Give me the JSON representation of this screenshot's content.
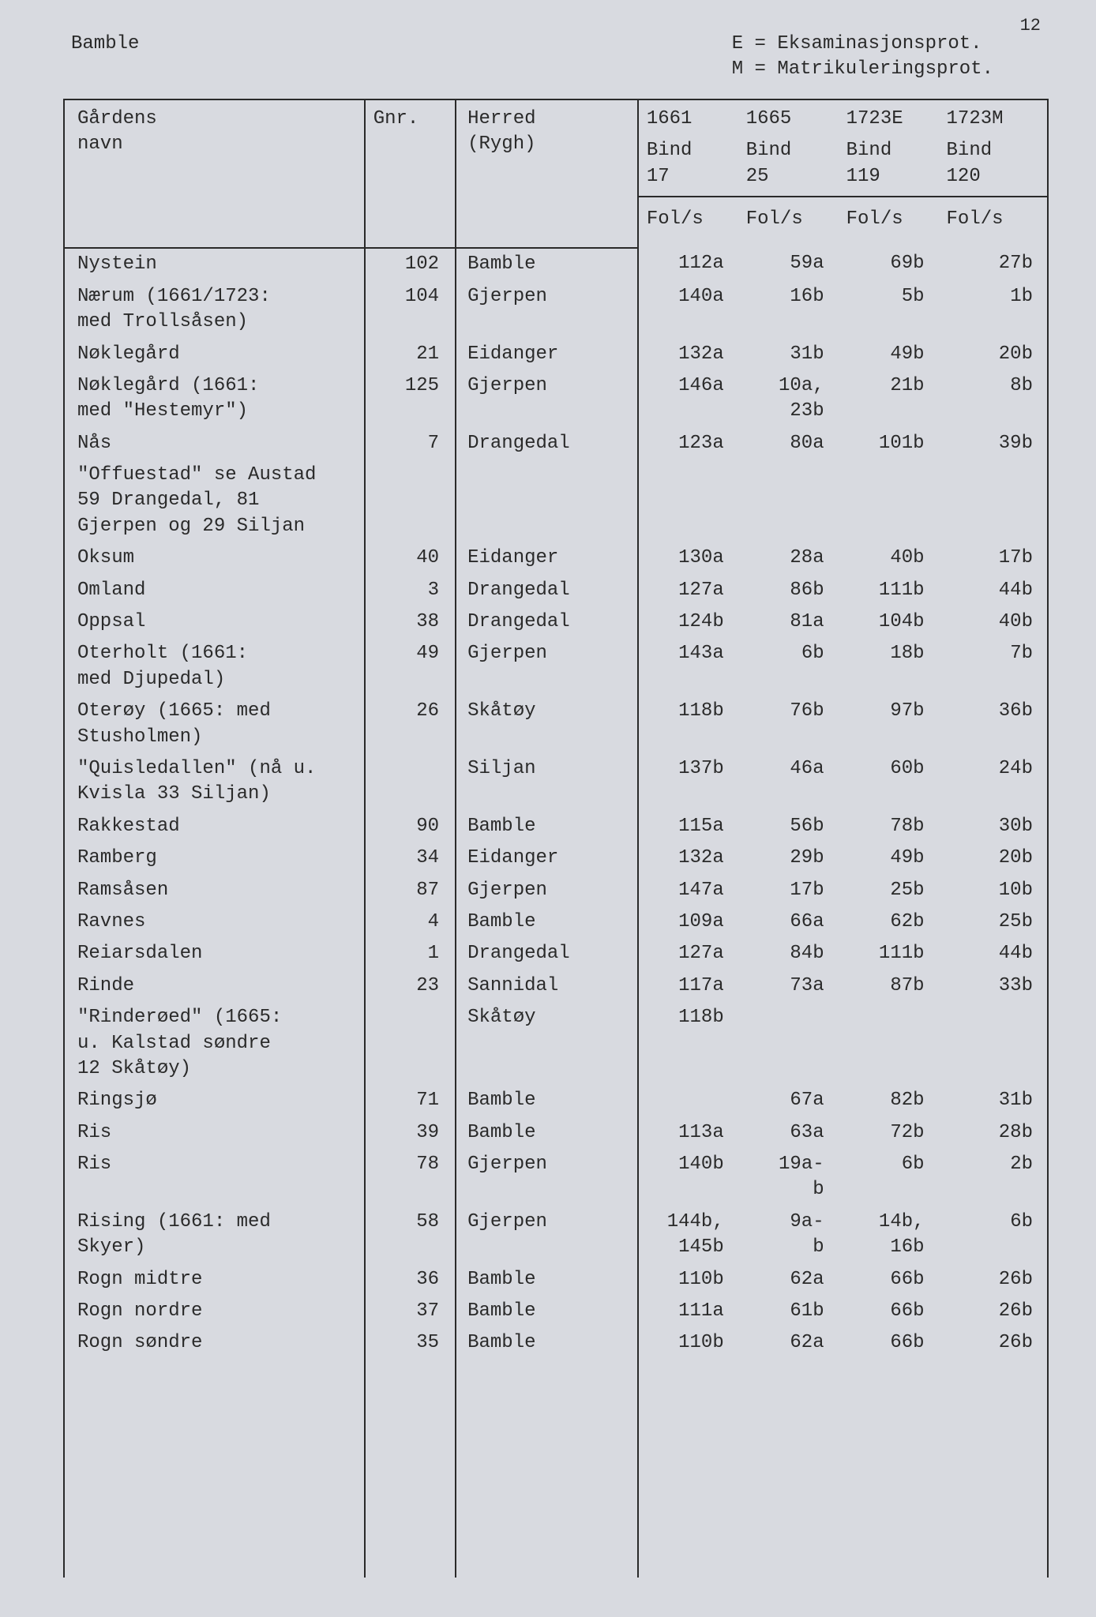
{
  "page_number": "12",
  "region": "Bamble",
  "legend": {
    "line1": "E = Eksaminasjonsprot.",
    "line2": "M = Matrikuleringsprot."
  },
  "columns": {
    "name": "Gårdens\nnavn",
    "gnr": "Gnr.",
    "herred": "Herred\n(Rygh)",
    "y1_label": "1661",
    "y2_label": "1665",
    "y3_label": "1723E",
    "y4_label": "1723M",
    "bind": "Bind",
    "y1_num": "17",
    "y2_num": "25",
    "y3_num": "119",
    "y4_num": "120",
    "fols": "Fol/s"
  },
  "rows": [
    {
      "name": "Nystein",
      "gnr": "102",
      "herred": "Bamble",
      "y1": "112a",
      "y2": "59a",
      "y3": "69b",
      "y4": "27b"
    },
    {
      "name": "Nærum (1661/1723:\nmed Trollsåsen)",
      "gnr": "104",
      "herred": "Gjerpen",
      "y1": "140a",
      "y2": "16b",
      "y3": "5b",
      "y4": "1b"
    },
    {
      "name": "Nøklegård",
      "gnr": "21",
      "herred": "Eidanger",
      "y1": "132a",
      "y2": "31b",
      "y3": "49b",
      "y4": "20b"
    },
    {
      "name": "Nøklegård (1661:\nmed \"Hestemyr\")",
      "gnr": "125",
      "herred": "Gjerpen",
      "y1": "146a",
      "y2": "10a,\n23b",
      "y3": "21b",
      "y4": "8b"
    },
    {
      "name": "Nås",
      "gnr": "7",
      "herred": "Drangedal",
      "y1": "123a",
      "y2": "80a",
      "y3": "101b",
      "y4": "39b"
    },
    {
      "name": "\"Offuestad\" se Austad\n59 Drangedal, 81\nGjerpen og 29 Siljan",
      "gnr": "",
      "herred": "",
      "y1": "",
      "y2": "",
      "y3": "",
      "y4": ""
    },
    {
      "name": "Oksum",
      "gnr": "40",
      "herred": "Eidanger",
      "y1": "130a",
      "y2": "28a",
      "y3": "40b",
      "y4": "17b"
    },
    {
      "name": "Omland",
      "gnr": "3",
      "herred": "Drangedal",
      "y1": "127a",
      "y2": "86b",
      "y3": "111b",
      "y4": "44b"
    },
    {
      "name": "Oppsal",
      "gnr": "38",
      "herred": "Drangedal",
      "y1": "124b",
      "y2": "81a",
      "y3": "104b",
      "y4": "40b"
    },
    {
      "name": "Oterholt (1661:\nmed Djupedal)",
      "gnr": "49",
      "herred": "Gjerpen",
      "y1": "143a",
      "y2": "6b",
      "y3": "18b",
      "y4": "7b"
    },
    {
      "name": "Oterøy (1665: med\nStusholmen)",
      "gnr": "26",
      "herred": "Skåtøy",
      "y1": "118b",
      "y2": "76b",
      "y3": "97b",
      "y4": "36b"
    },
    {
      "name": "\"Quisledallen\" (nå u.\nKvisla 33 Siljan)",
      "gnr": "",
      "herred": "Siljan",
      "y1": "137b",
      "y2": "46a",
      "y3": "60b",
      "y4": "24b"
    },
    {
      "name": "Rakkestad",
      "gnr": "90",
      "herred": "Bamble",
      "y1": "115a",
      "y2": "56b",
      "y3": "78b",
      "y4": "30b"
    },
    {
      "name": "Ramberg",
      "gnr": "34",
      "herred": "Eidanger",
      "y1": "132a",
      "y2": "29b",
      "y3": "49b",
      "y4": "20b"
    },
    {
      "name": "Ramsåsen",
      "gnr": "87",
      "herred": "Gjerpen",
      "y1": "147a",
      "y2": "17b",
      "y3": "25b",
      "y4": "10b"
    },
    {
      "name": "Ravnes",
      "gnr": "4",
      "herred": "Bamble",
      "y1": "109a",
      "y2": "66a",
      "y3": "62b",
      "y4": "25b"
    },
    {
      "name": "Reiarsdalen",
      "gnr": "1",
      "herred": "Drangedal",
      "y1": "127a",
      "y2": "84b",
      "y3": "111b",
      "y4": "44b"
    },
    {
      "name": "Rinde",
      "gnr": "23",
      "herred": "Sannidal",
      "y1": "117a",
      "y2": "73a",
      "y3": "87b",
      "y4": "33b"
    },
    {
      "name": "\"Rinderøed\" (1665:\nu. Kalstad søndre\n12 Skåtøy)",
      "gnr": "",
      "herred": "Skåtøy",
      "y1": "118b",
      "y2": "",
      "y3": "",
      "y4": ""
    },
    {
      "name": "Ringsjø",
      "gnr": "71",
      "herred": "Bamble",
      "y1": "",
      "y2": "67a",
      "y3": "82b",
      "y4": "31b"
    },
    {
      "name": "Ris",
      "gnr": "39",
      "herred": "Bamble",
      "y1": "113a",
      "y2": "63a",
      "y3": "72b",
      "y4": "28b"
    },
    {
      "name": "Ris",
      "gnr": "78",
      "herred": "Gjerpen",
      "y1": "140b",
      "y2": "19a-\nb",
      "y3": "6b",
      "y4": "2b"
    },
    {
      "name": "Rising (1661: med\nSkyer)",
      "gnr": "58",
      "herred": "Gjerpen",
      "y1": "144b,\n145b",
      "y2": "9a-\nb",
      "y3": "14b,\n16b",
      "y4": "6b"
    },
    {
      "name": "Rogn midtre",
      "gnr": "36",
      "herred": "Bamble",
      "y1": "110b",
      "y2": "62a",
      "y3": "66b",
      "y4": "26b"
    },
    {
      "name": "Rogn nordre",
      "gnr": "37",
      "herred": "Bamble",
      "y1": "111a",
      "y2": "61b",
      "y3": "66b",
      "y4": "26b"
    },
    {
      "name": "Rogn søndre",
      "gnr": "35",
      "herred": "Bamble",
      "y1": "110b",
      "y2": "62a",
      "y3": "66b",
      "y4": "26b"
    }
  ],
  "style": {
    "background_color": "#d8dae0",
    "text_color": "#2a2a2a",
    "border_color": "#2a2a2a",
    "font_family": "Courier New",
    "font_size_pt": 18
  }
}
